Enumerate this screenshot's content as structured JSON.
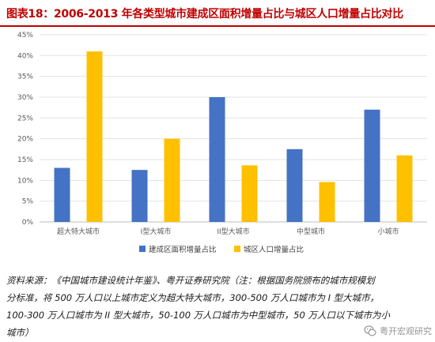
{
  "figure": {
    "title": "图表18：2006-2013 年各类型城市建成区面积增量占比与城区人口增量占比对比"
  },
  "chart_data": {
    "type": "bar",
    "categories": [
      "超大特大城市",
      "I型大城市",
      "II型大城市",
      "中型城市",
      "小城市"
    ],
    "series": [
      {
        "name": "建成区面积增量占比",
        "color": "#4472c4",
        "values": [
          13.0,
          12.5,
          30.0,
          17.5,
          27.0
        ]
      },
      {
        "name": "城区人口增量占比",
        "color": "#ffc000",
        "values": [
          41.0,
          20.0,
          13.6,
          9.6,
          16.0
        ]
      }
    ],
    "ylim": [
      0,
      45
    ],
    "yticks": [
      "0%",
      "5%",
      "10%",
      "15%",
      "20%",
      "25%",
      "30%",
      "35%",
      "40%",
      "45%"
    ],
    "grid": true,
    "legend": "bottom"
  },
  "source": {
    "lines": [
      "资料来源：《中国城市建设统计年鉴》、粤开证券研究院（注：根据国务院颁布的城市规模划",
      "分标准，将 500 万人口以上城市定义为超大特大城市，300-500 万人口城市为 I 型大城市，",
      "100-300 万人口城市为 II 型大城市，50-100 万人口城市为中型城市，50 万人口以下城市为小",
      "城市）"
    ]
  },
  "watermark": {
    "text": "粤开宏观研究",
    "icon": "wechat-icon"
  }
}
